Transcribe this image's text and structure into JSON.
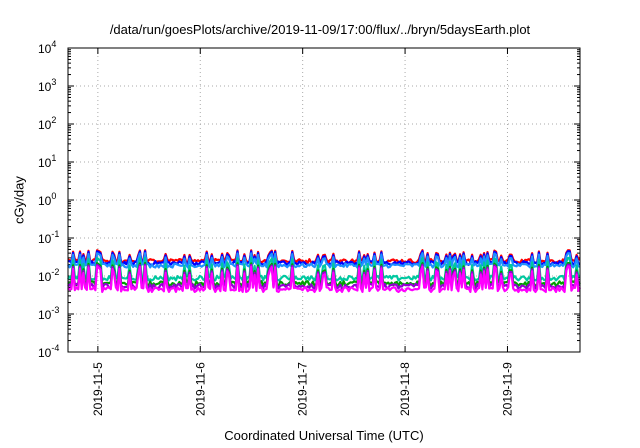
{
  "chart_data": {
    "type": "line",
    "title": "/data/run/goesPlots/archive/2019-11-09/17:00/flux/../bryn/5daysEarth.plot",
    "xlabel": "Coordinated Universal Time (UTC)",
    "ylabel": "cGy/day",
    "y_scale": "log",
    "ylim": [
      0.0001,
      10000
    ],
    "y_ticks": [
      {
        "mant": "10",
        "exp": "-4",
        "value": 0.0001
      },
      {
        "mant": "10",
        "exp": "-3",
        "value": 0.001
      },
      {
        "mant": "10",
        "exp": "-2",
        "value": 0.01
      },
      {
        "mant": "10",
        "exp": "-1",
        "value": 0.1
      },
      {
        "mant": "10",
        "exp": "0",
        "value": 1
      },
      {
        "mant": "10",
        "exp": "1",
        "value": 10
      },
      {
        "mant": "10",
        "exp": "2",
        "value": 100
      },
      {
        "mant": "10",
        "exp": "3",
        "value": 1000
      },
      {
        "mant": "10",
        "exp": "4",
        "value": 10000
      }
    ],
    "xlim": [
      "2019-11-04T17:00",
      "2019-11-09T17:00"
    ],
    "x_ticks": [
      "2019-11-5",
      "2019-11-6",
      "2019-11-7",
      "2019-11-8",
      "2019-11-9"
    ],
    "x_tick_positions": [
      "2019-11-05T00:00",
      "2019-11-06T00:00",
      "2019-11-07T00:00",
      "2019-11-08T00:00",
      "2019-11-09T00:00"
    ],
    "grid": true,
    "series": [
      {
        "color": "#ff0000",
        "base": 0.025,
        "peak": 0.048
      },
      {
        "color": "#0000ff",
        "base": 0.022,
        "peak": 0.045
      },
      {
        "color": "#1e90ff",
        "base": 0.019,
        "peak": 0.04
      },
      {
        "color": "#00c8a0",
        "base": 0.009,
        "peak": 0.03
      },
      {
        "color": "#00a000",
        "base": 0.0065,
        "peak": 0.022
      },
      {
        "color": "#9400d3",
        "base": 0.0055,
        "peak": 0.02
      },
      {
        "color": "#ff00ff",
        "base": 0.0045,
        "peak": 0.018
      }
    ]
  }
}
